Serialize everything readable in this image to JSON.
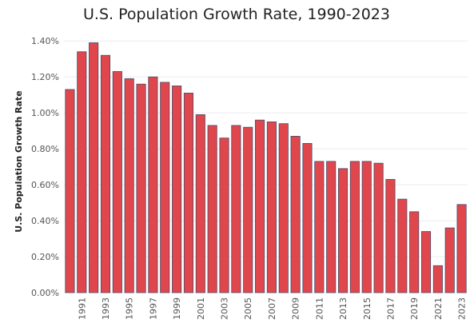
{
  "chart_data": {
    "type": "bar",
    "title": "U.S. Population Growth Rate, 1990-2023",
    "xlabel": "",
    "ylabel": "U.S. Population Growth Rate",
    "ylim": [
      0,
      1.45
    ],
    "yticks": [
      0,
      0.2,
      0.4,
      0.6,
      0.8,
      1.0,
      1.2,
      1.4
    ],
    "ytick_labels": [
      "0.00%",
      "0.20%",
      "0.40%",
      "0.60%",
      "0.80%",
      "1.00%",
      "1.20%",
      "1.40%"
    ],
    "categories": [
      "1990",
      "1991",
      "1992",
      "1993",
      "1994",
      "1995",
      "1996",
      "1997",
      "1998",
      "1999",
      "2000",
      "2001",
      "2002",
      "2003",
      "2004",
      "2005",
      "2006",
      "2007",
      "2008",
      "2009",
      "2010",
      "2011",
      "2012",
      "2013",
      "2014",
      "2015",
      "2016",
      "2017",
      "2018",
      "2019",
      "2020",
      "2021",
      "2022",
      "2023"
    ],
    "x_labels_shown": [
      "1991",
      "1993",
      "1995",
      "1997",
      "1999",
      "2001",
      "2003",
      "2005",
      "2007",
      "2009",
      "2011",
      "2013",
      "2015",
      "2017",
      "2019",
      "2021",
      "2023"
    ],
    "values": [
      1.13,
      1.34,
      1.39,
      1.32,
      1.23,
      1.19,
      1.16,
      1.2,
      1.17,
      1.15,
      1.11,
      0.99,
      0.93,
      0.86,
      0.93,
      0.92,
      0.96,
      0.95,
      0.94,
      0.87,
      0.83,
      0.73,
      0.73,
      0.69,
      0.73,
      0.73,
      0.72,
      0.63,
      0.52,
      0.45,
      0.34,
      0.15,
      0.36,
      0.49
    ],
    "bar_color": "#e0474c",
    "bar_edge_color": "#4a4a6a",
    "grid": true
  }
}
